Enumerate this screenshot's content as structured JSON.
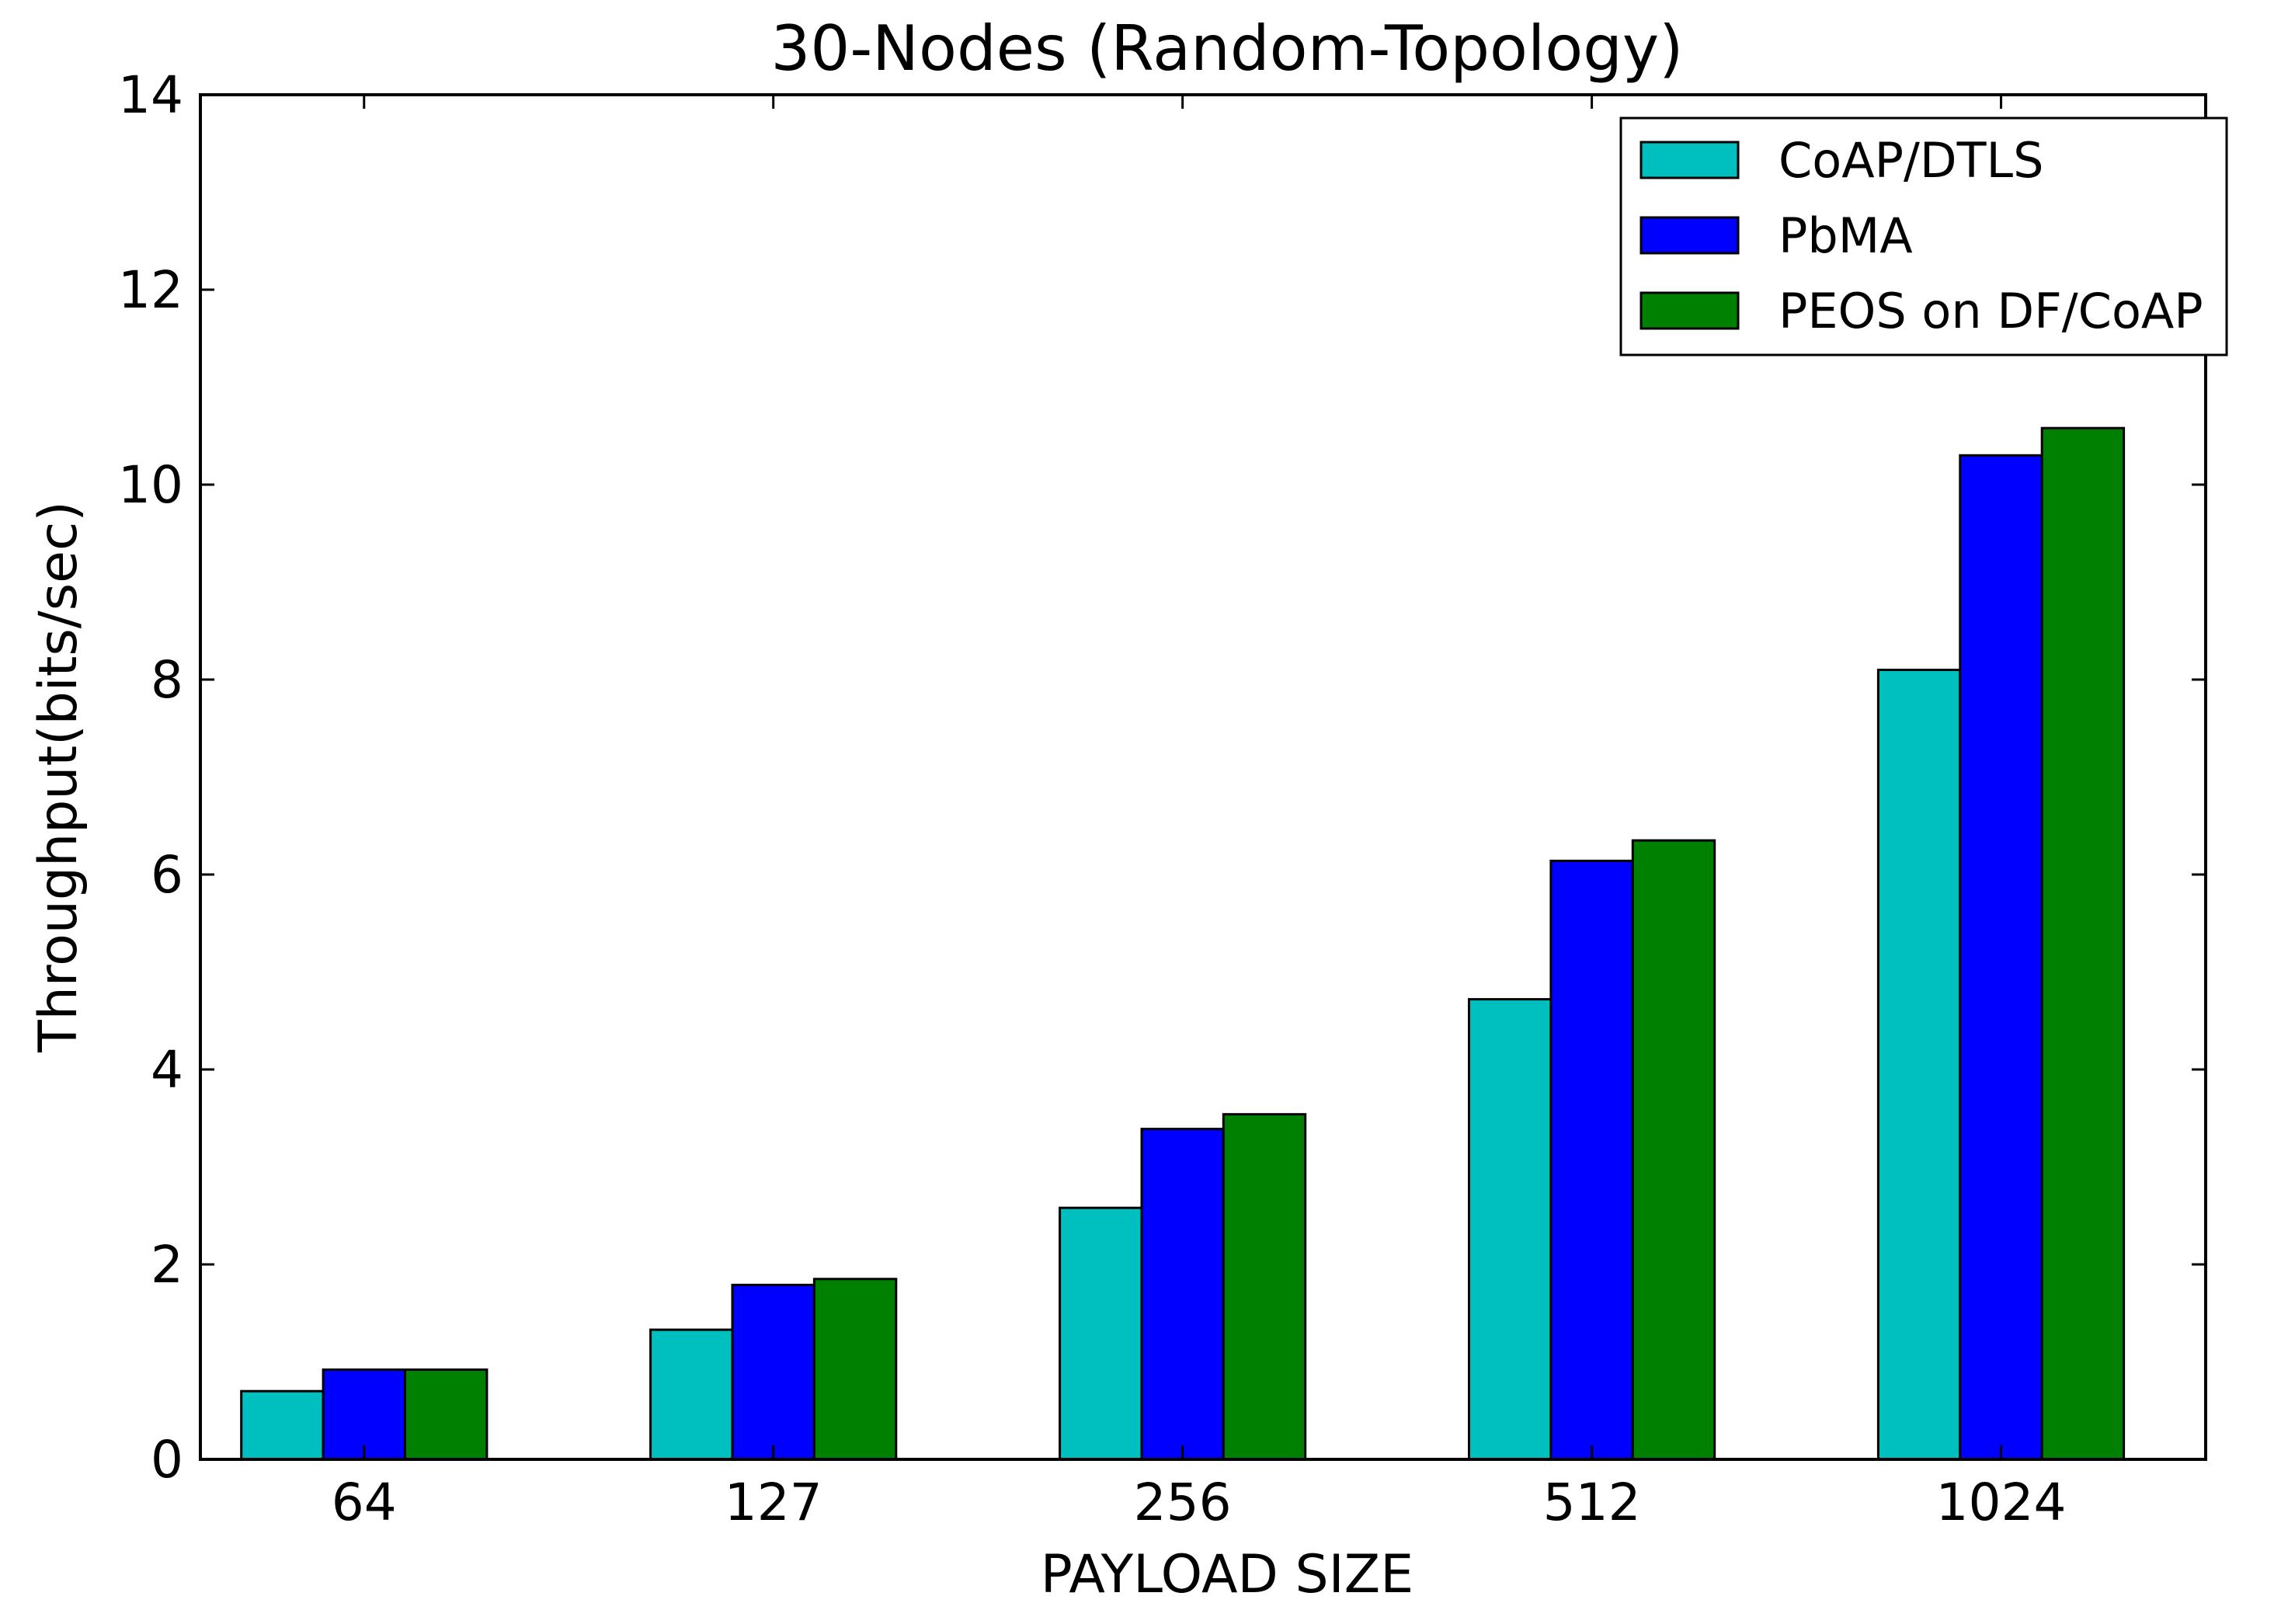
{
  "chart_data": {
    "type": "bar",
    "title": "30-Nodes (Random-Topology)",
    "xlabel": "PAYLOAD SIZE",
    "ylabel": "Throughput(bits/sec)",
    "categories": [
      "64",
      "127",
      "256",
      "512",
      "1024"
    ],
    "ylim": [
      0,
      14
    ],
    "yticks": [
      0,
      2,
      4,
      6,
      8,
      10,
      12,
      14
    ],
    "grid": false,
    "legend_position": "top-right",
    "series": [
      {
        "name": "CoAP/DTLS",
        "color": "#00bfbf",
        "values": [
          0.7,
          1.33,
          2.58,
          4.72,
          8.1
        ]
      },
      {
        "name": "PbMA",
        "color": "#0000ff",
        "values": [
          0.92,
          1.79,
          3.39,
          6.14,
          10.3
        ]
      },
      {
        "name": "PEOS on DF/CoAP",
        "color": "#008000",
        "values": [
          0.92,
          1.85,
          3.54,
          6.35,
          10.58
        ]
      }
    ]
  }
}
